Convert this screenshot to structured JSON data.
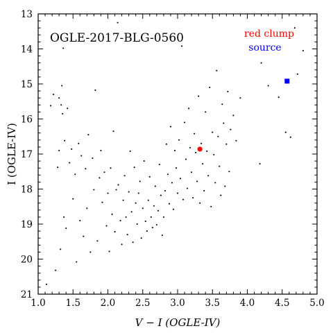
{
  "chart_data": {
    "type": "scatter",
    "title": "OGLE-2017-BLG-0560",
    "xlabel": "V − I (OGLE-IV)",
    "ylabel": "I (OGLE-IV)",
    "xlim": [
      1.0,
      5.0
    ],
    "ylim": [
      21,
      13
    ],
    "y_inverted": true,
    "x_ticks": [
      "1.0",
      "1.5",
      "2.0",
      "2.5",
      "3.0",
      "3.5",
      "4.0",
      "4.5",
      "5.0"
    ],
    "y_ticks": [
      "13",
      "14",
      "15",
      "16",
      "17",
      "18",
      "19",
      "20",
      "21"
    ],
    "grid": false,
    "legend_position": "top-right",
    "series": [
      {
        "name": "red clump",
        "color": "#ff0000",
        "marker": "circle",
        "points": [
          [
            3.32,
            16.86
          ]
        ]
      },
      {
        "name": "source",
        "color": "#0000ff",
        "marker": "square",
        "points": [
          [
            4.57,
            14.92
          ]
        ]
      }
    ],
    "field_stars": {
      "color": "#000000",
      "marker": "dot",
      "points": [
        [
          1.12,
          20.72
        ],
        [
          1.18,
          15.62
        ],
        [
          1.22,
          15.3
        ],
        [
          1.25,
          20.32
        ],
        [
          1.28,
          17.38
        ],
        [
          1.3,
          15.4
        ],
        [
          1.3,
          16.9
        ],
        [
          1.32,
          19.72
        ],
        [
          1.33,
          15.6
        ],
        [
          1.34,
          15.05
        ],
        [
          1.35,
          15.85
        ],
        [
          1.36,
          13.98
        ],
        [
          1.37,
          18.8
        ],
        [
          1.38,
          16.62
        ],
        [
          1.4,
          19.12
        ],
        [
          1.42,
          15.7
        ],
        [
          1.45,
          17.25
        ],
        [
          1.48,
          16.86
        ],
        [
          1.5,
          18.28
        ],
        [
          1.53,
          17.58
        ],
        [
          1.55,
          20.08
        ],
        [
          1.58,
          16.7
        ],
        [
          1.6,
          18.9
        ],
        [
          1.62,
          17.05
        ],
        [
          1.65,
          19.35
        ],
        [
          1.68,
          17.42
        ],
        [
          1.7,
          18.55
        ],
        [
          1.72,
          16.45
        ],
        [
          1.75,
          19.8
        ],
        [
          1.78,
          17.12
        ],
        [
          1.8,
          18.02
        ],
        [
          1.82,
          15.18
        ],
        [
          1.85,
          19.48
        ],
        [
          1.88,
          17.68
        ],
        [
          1.9,
          16.9
        ],
        [
          1.92,
          18.38
        ],
        [
          1.95,
          17.52
        ],
        [
          1.98,
          19.05
        ],
        [
          2.0,
          18.12
        ],
        [
          2.02,
          19.78
        ],
        [
          2.04,
          17.4
        ],
        [
          2.06,
          18.72
        ],
        [
          2.08,
          16.35
        ],
        [
          2.1,
          19.22
        ],
        [
          2.12,
          18.02
        ],
        [
          2.14,
          13.25
        ],
        [
          2.15,
          17.88
        ],
        [
          2.18,
          18.9
        ],
        [
          2.2,
          19.58
        ],
        [
          2.22,
          18.32
        ],
        [
          2.24,
          17.62
        ],
        [
          2.26,
          18.8
        ],
        [
          2.28,
          19.3
        ],
        [
          2.3,
          18.08
        ],
        [
          2.32,
          16.92
        ],
        [
          2.34,
          18.65
        ],
        [
          2.36,
          19.52
        ],
        [
          2.38,
          17.38
        ],
        [
          2.4,
          18.4
        ],
        [
          2.42,
          19.0
        ],
        [
          2.44,
          18.12
        ],
        [
          2.46,
          17.78
        ],
        [
          2.48,
          19.4
        ],
        [
          2.5,
          18.55
        ],
        [
          2.52,
          17.2
        ],
        [
          2.54,
          18.92
        ],
        [
          2.56,
          19.2
        ],
        [
          2.58,
          18.32
        ],
        [
          2.6,
          17.65
        ],
        [
          2.62,
          18.8
        ],
        [
          2.64,
          19.1
        ],
        [
          2.66,
          18.48
        ],
        [
          2.68,
          17.92
        ],
        [
          2.7,
          19.02
        ],
        [
          2.72,
          18.62
        ],
        [
          2.74,
          17.3
        ],
        [
          2.76,
          18.18
        ],
        [
          2.78,
          19.32
        ],
        [
          2.8,
          18.8
        ],
        [
          2.82,
          18.05
        ],
        [
          2.84,
          16.72
        ],
        [
          2.86,
          17.58
        ],
        [
          2.88,
          18.42
        ],
        [
          2.9,
          16.22
        ],
        [
          2.92,
          17.82
        ],
        [
          2.94,
          18.58
        ],
        [
          2.96,
          16.9
        ],
        [
          2.98,
          17.4
        ],
        [
          3.0,
          18.12
        ],
        [
          3.02,
          16.6
        ],
        [
          3.04,
          17.7
        ],
        [
          3.06,
          13.92
        ],
        [
          3.08,
          18.3
        ],
        [
          3.1,
          16.1
        ],
        [
          3.12,
          17.15
        ],
        [
          3.14,
          17.98
        ],
        [
          3.16,
          15.7
        ],
        [
          3.18,
          16.82
        ],
        [
          3.2,
          17.52
        ],
        [
          3.22,
          18.25
        ],
        [
          3.24,
          16.42
        ],
        [
          3.26,
          16.96
        ],
        [
          3.28,
          17.78
        ],
        [
          3.3,
          15.35
        ],
        [
          3.32,
          18.4
        ],
        [
          3.34,
          16.7
        ],
        [
          3.36,
          17.28
        ],
        [
          3.38,
          18.05
        ],
        [
          3.4,
          15.8
        ],
        [
          3.42,
          16.92
        ],
        [
          3.44,
          17.62
        ],
        [
          3.46,
          15.1
        ],
        [
          3.48,
          18.5
        ],
        [
          3.5,
          16.38
        ],
        [
          3.52,
          17.02
        ],
        [
          3.54,
          17.82
        ],
        [
          3.56,
          14.62
        ],
        [
          3.58,
          16.5
        ],
        [
          3.6,
          17.35
        ],
        [
          3.62,
          18.18
        ],
        [
          3.64,
          15.58
        ],
        [
          3.66,
          16.12
        ],
        [
          3.68,
          17.92
        ],
        [
          3.7,
          16.72
        ],
        [
          3.72,
          15.22
        ],
        [
          3.74,
          17.5
        ],
        [
          3.76,
          16.3
        ],
        [
          3.8,
          15.9
        ],
        [
          3.84,
          16.62
        ],
        [
          3.9,
          15.4
        ],
        [
          4.18,
          17.28
        ],
        [
          4.2,
          14.4
        ],
        [
          4.3,
          15.05
        ],
        [
          4.45,
          15.38
        ],
        [
          4.55,
          16.38
        ],
        [
          4.62,
          16.52
        ],
        [
          4.68,
          13.4
        ],
        [
          4.72,
          14.72
        ],
        [
          4.8,
          14.05
        ]
      ]
    }
  }
}
